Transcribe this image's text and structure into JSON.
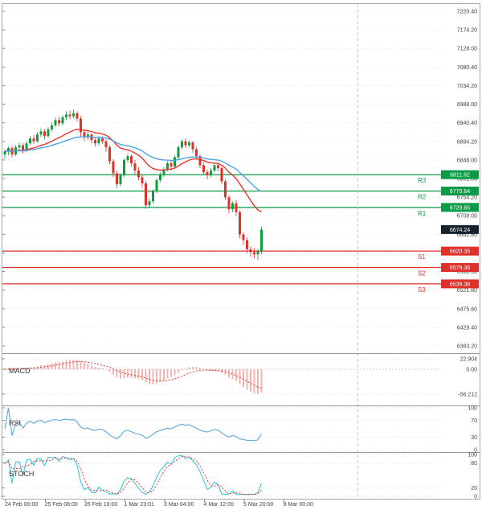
{
  "chart_data": {
    "type": "candlestick",
    "title": "",
    "y_axis": {
      "top": 7220.4,
      "bottom": 6383.2,
      "ticks": [
        "7220.40",
        "7174.20",
        "7128.00",
        "7080.40",
        "7034.20",
        "6988.00",
        "6940.40",
        "6894.20",
        "6848.00",
        "6801.80",
        "6754.20",
        "6708.00",
        "6662.80",
        "6614.20",
        "6568.00",
        "6521.80",
        "6475.60",
        "6429.40",
        "6383.20"
      ]
    },
    "x_axis": {
      "labels": [
        "24 Feb 00:00",
        "25 Feb 08:00",
        "26 Feb 16:00",
        "1 Mar 23:01",
        "3 Mar 04:00",
        "4 Mar 12:00",
        "5 Mar 20:00",
        "9 Mar 00:00"
      ]
    },
    "colors": {
      "up": "#0f9d3c",
      "down": "#e1302a"
    },
    "candles": [
      [
        6862,
        6875,
        6852,
        6870
      ],
      [
        6870,
        6882,
        6860,
        6878
      ],
      [
        6878,
        6884,
        6855,
        6862
      ],
      [
        6862,
        6886,
        6858,
        6880
      ],
      [
        6880,
        6892,
        6872,
        6885
      ],
      [
        6885,
        6890,
        6865,
        6872
      ],
      [
        6872,
        6896,
        6868,
        6890
      ],
      [
        6890,
        6908,
        6885,
        6902
      ],
      [
        6902,
        6910,
        6888,
        6895
      ],
      [
        6895,
        6918,
        6892,
        6912
      ],
      [
        6912,
        6928,
        6905,
        6920
      ],
      [
        6920,
        6926,
        6900,
        6908
      ],
      [
        6908,
        6930,
        6904,
        6925
      ],
      [
        6925,
        6942,
        6920,
        6935
      ],
      [
        6935,
        6955,
        6930,
        6948
      ],
      [
        6948,
        6956,
        6932,
        6940
      ],
      [
        6940,
        6960,
        6935,
        6955
      ],
      [
        6955,
        6970,
        6948,
        6962
      ],
      [
        6962,
        6972,
        6950,
        6958
      ],
      [
        6958,
        6975,
        6952,
        6965
      ],
      [
        6965,
        6970,
        6945,
        6952
      ],
      [
        6952,
        6958,
        6908,
        6918
      ],
      [
        6918,
        6925,
        6895,
        6905
      ],
      [
        6905,
        6920,
        6898,
        6912
      ],
      [
        6912,
        6915,
        6890,
        6898
      ],
      [
        6898,
        6905,
        6882,
        6890
      ],
      [
        6890,
        6908,
        6885,
        6902
      ],
      [
        6902,
        6908,
        6888,
        6895
      ],
      [
        6895,
        6900,
        6868,
        6880
      ],
      [
        6880,
        6885,
        6838,
        6845
      ],
      [
        6845,
        6850,
        6805,
        6815
      ],
      [
        6815,
        6822,
        6778,
        6788
      ],
      [
        6788,
        6815,
        6782,
        6810
      ],
      [
        6810,
        6852,
        6806,
        6848
      ],
      [
        6848,
        6865,
        6842,
        6858
      ],
      [
        6858,
        6862,
        6832,
        6840
      ],
      [
        6840,
        6848,
        6812,
        6822
      ],
      [
        6822,
        6830,
        6798,
        6805
      ],
      [
        6805,
        6812,
        6780,
        6790
      ],
      [
        6790,
        6795,
        6726,
        6735
      ],
      [
        6735,
        6752,
        6728,
        6745
      ],
      [
        6745,
        6775,
        6740,
        6770
      ],
      [
        6770,
        6802,
        6765,
        6798
      ],
      [
        6798,
        6818,
        6792,
        6812
      ],
      [
        6812,
        6830,
        6806,
        6825
      ],
      [
        6825,
        6845,
        6820,
        6840
      ],
      [
        6840,
        6846,
        6822,
        6832
      ],
      [
        6832,
        6860,
        6828,
        6855
      ],
      [
        6855,
        6885,
        6850,
        6880
      ],
      [
        6880,
        6900,
        6875,
        6895
      ],
      [
        6895,
        6902,
        6878,
        6885
      ],
      [
        6885,
        6898,
        6880,
        6892
      ],
      [
        6892,
        6896,
        6866,
        6875
      ],
      [
        6875,
        6880,
        6850,
        6858
      ],
      [
        6858,
        6862,
        6828,
        6835
      ],
      [
        6835,
        6842,
        6812,
        6818
      ],
      [
        6818,
        6825,
        6800,
        6810
      ],
      [
        6810,
        6828,
        6805,
        6822
      ],
      [
        6822,
        6840,
        6818,
        6835
      ],
      [
        6835,
        6842,
        6820,
        6828
      ],
      [
        6828,
        6832,
        6788,
        6795
      ],
      [
        6795,
        6800,
        6748,
        6755
      ],
      [
        6755,
        6760,
        6715,
        6725
      ],
      [
        6725,
        6745,
        6718,
        6740
      ],
      [
        6740,
        6748,
        6708,
        6718
      ],
      [
        6718,
        6722,
        6652,
        6662
      ],
      [
        6662,
        6668,
        6636,
        6648
      ],
      [
        6648,
        6655,
        6615,
        6625
      ],
      [
        6625,
        6632,
        6606,
        6618
      ],
      [
        6618,
        6628,
        6602,
        6612
      ],
      [
        6612,
        6626,
        6598,
        6620
      ],
      [
        6620,
        6682,
        6612,
        6674
      ]
    ],
    "moving_averages": [
      {
        "name": "ma-fast-line",
        "period": 20,
        "color": "#e8362c"
      },
      {
        "name": "ma-slow-line",
        "period": 40,
        "color": "#4aa3e8"
      }
    ],
    "pivot_levels": [
      {
        "label": "R3",
        "value": "6811.62",
        "price": 6811.62,
        "color": "#0a9b47"
      },
      {
        "label": "R2",
        "value": "6770.64",
        "price": 6770.64,
        "color": "#0a9b47"
      },
      {
        "label": "R1",
        "value": "6729.65",
        "price": 6729.65,
        "color": "#0a9b47"
      },
      {
        "label": "S1",
        "value": "6620.35",
        "price": 6620.35,
        "color": "#e1302a"
      },
      {
        "label": "S2",
        "value": "6579.36",
        "price": 6579.36,
        "color": "#e1302a"
      },
      {
        "label": "S3",
        "value": "6538.38",
        "price": 6538.38,
        "color": "#e1302a"
      }
    ],
    "last_price": {
      "value": "6674.24",
      "price": 6674.24,
      "bg": "#18222e"
    },
    "panels": {
      "macd": {
        "label": "MACD",
        "ticks": [
          "22.904",
          "0.00",
          "-56.212"
        ],
        "hist_color": "#f3b4b0",
        "signal_color": "#e0392f"
      },
      "rsi": {
        "label": "RSI",
        "ticks": [
          "100",
          "70",
          "30",
          "0"
        ],
        "tick_values": [
          100,
          70,
          30,
          0
        ],
        "color": "#58a8e0"
      },
      "stoch": {
        "label": "STOCH",
        "ticks": [
          "100",
          "80",
          "20",
          "0"
        ],
        "tick_values": [
          100,
          80,
          20,
          0
        ],
        "k_color": "#2bc4d9",
        "d_color": "#e0392f"
      }
    }
  }
}
